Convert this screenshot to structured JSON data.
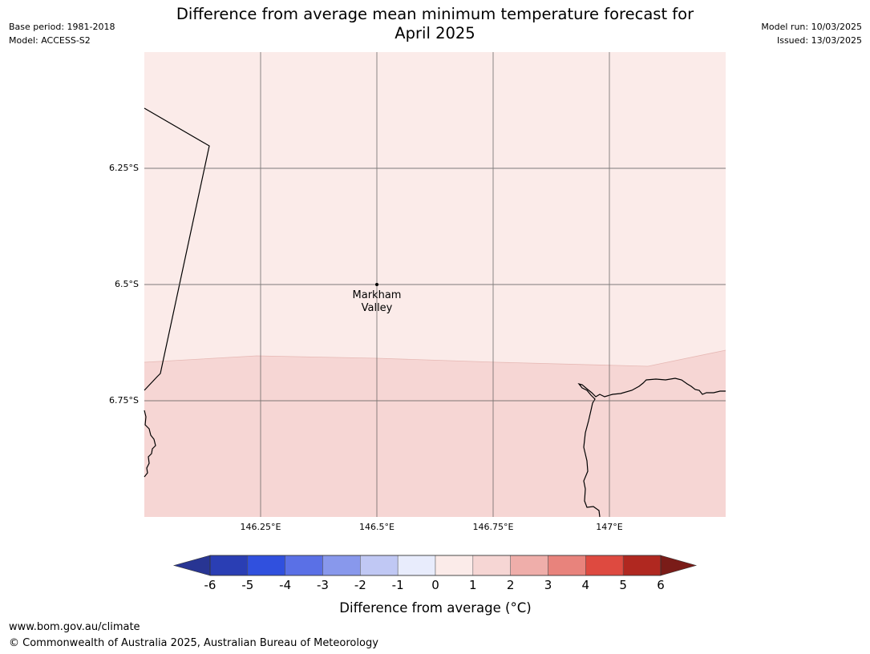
{
  "header": {
    "base_period": "Base period: 1981-2018",
    "model": "Model: ACCESS-S2",
    "title_line1": "Difference from average mean minimum temperature forecast for",
    "title_line2": "April 2025",
    "model_run": "Model run: 10/03/2025",
    "issued": "Issued: 13/03/2025"
  },
  "map": {
    "lat_labels": [
      "6.25°S",
      "6.5°S",
      "6.75°S"
    ],
    "lon_labels": [
      "146.25°E",
      "146.5°E",
      "146.75°E",
      "147°E"
    ],
    "place_line1": "Markham",
    "place_line2": "Valley",
    "fill_colors": {
      "band_0_to_1": "#fbebe9",
      "band_1_to_2": "#f6d6d4"
    }
  },
  "legend": {
    "ticks": [
      "-6",
      "-5",
      "-4",
      "-3",
      "-2",
      "-1",
      "0",
      "1",
      "2",
      "3",
      "4",
      "5",
      "6"
    ],
    "colors": [
      "#283593",
      "#2a3eb4",
      "#3050de",
      "#5a70e6",
      "#8898ec",
      "#c0c8f4",
      "#e8ecfc",
      "#fbebe9",
      "#f6d6d4",
      "#efaeaa",
      "#e8837c",
      "#de4a40",
      "#b02820",
      "#7a1c18"
    ],
    "label_prefix": "Difference from average (",
    "label_unit": "°C",
    "label_suffix": ")"
  },
  "footer": {
    "url": "www.bom.gov.au/climate",
    "copyright": "© Commonwealth of Australia 2025, Australian Bureau of Meteorology"
  }
}
